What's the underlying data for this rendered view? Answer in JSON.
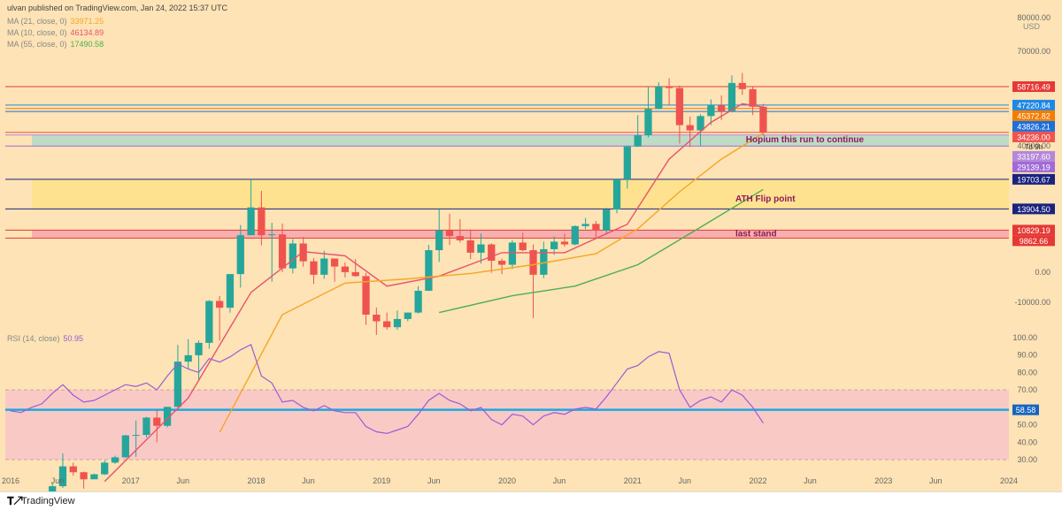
{
  "header": {
    "published": "ulvan published on TradingView.com, Jan 24, 2022 15:37 UTC",
    "ma21_label": "MA (21, close, 0)",
    "ma21_value": "33971.25",
    "ma21_color": "#f5a623",
    "ma10_label": "MA (10, close, 0)",
    "ma10_value": "46134.89",
    "ma10_color": "#e8526b",
    "ma55_label": "MA (55, close, 0)",
    "ma55_value": "17490.58",
    "ma55_color": "#4caf50"
  },
  "footer": {
    "logo_icon": "tradingview-logo-icon",
    "brand": "TradingView"
  },
  "colors": {
    "background": "#fde3b5",
    "bull": "#26a69a",
    "bear": "#ef5350",
    "rsi_line": "#9c5bd6",
    "rsi_band": "#f7c3c9",
    "rsi_level_line": "#1ea7e0"
  },
  "chart_data": [
    {
      "type": "candlestick",
      "title": "",
      "currency_label": "USD",
      "yscale": "log",
      "y_tick_labels": [
        "80000.00",
        "70000.00",
        "40000.00",
        "0.00",
        "-10000.00"
      ],
      "x_tick_labels": [
        "2016",
        "Jun",
        "2017",
        "Jun",
        "2018",
        "Jun",
        "2019",
        "Jun",
        "2020",
        "Jun",
        "2021",
        "Jun",
        "2022",
        "Jun",
        "2023",
        "Jun",
        "2024"
      ],
      "x_tick_dates": [
        "2016-01",
        "2016-06",
        "2017-01",
        "2017-06",
        "2018-01",
        "2018-06",
        "2019-01",
        "2019-06",
        "2020-01",
        "2020-06",
        "2021-01",
        "2021-06",
        "2022-01",
        "2022-06",
        "2023-01",
        "2023-06",
        "2024-01"
      ],
      "candles": [
        {
          "date": "2016-01",
          "o": 430,
          "h": 465,
          "l": 355,
          "c": 370
        },
        {
          "date": "2016-02",
          "o": 370,
          "h": 440,
          "l": 365,
          "c": 435
        },
        {
          "date": "2016-03",
          "o": 435,
          "h": 440,
          "l": 405,
          "c": 415
        },
        {
          "date": "2016-04",
          "o": 415,
          "h": 465,
          "l": 412,
          "c": 450
        },
        {
          "date": "2016-05",
          "o": 450,
          "h": 550,
          "l": 440,
          "c": 530
        },
        {
          "date": "2016-06",
          "o": 530,
          "h": 780,
          "l": 520,
          "c": 670
        },
        {
          "date": "2016-07",
          "o": 670,
          "h": 700,
          "l": 600,
          "c": 625
        },
        {
          "date": "2016-08",
          "o": 625,
          "h": 630,
          "l": 515,
          "c": 575
        },
        {
          "date": "2016-09",
          "o": 575,
          "h": 615,
          "l": 590,
          "c": 610
        },
        {
          "date": "2016-10",
          "o": 610,
          "h": 720,
          "l": 605,
          "c": 700
        },
        {
          "date": "2016-11",
          "o": 700,
          "h": 760,
          "l": 690,
          "c": 745
        },
        {
          "date": "2016-12",
          "o": 745,
          "h": 970,
          "l": 740,
          "c": 965
        },
        {
          "date": "2017-01",
          "o": 965,
          "h": 1150,
          "l": 750,
          "c": 970
        },
        {
          "date": "2017-02",
          "o": 970,
          "h": 1200,
          "l": 940,
          "c": 1190
        },
        {
          "date": "2017-03",
          "o": 1190,
          "h": 1300,
          "l": 890,
          "c": 1080
        },
        {
          "date": "2017-04",
          "o": 1080,
          "h": 1350,
          "l": 1060,
          "c": 1350
        },
        {
          "date": "2017-05",
          "o": 1350,
          "h": 2800,
          "l": 1340,
          "c": 2300
        },
        {
          "date": "2017-06",
          "o": 2300,
          "h": 3000,
          "l": 2100,
          "c": 2480
        },
        {
          "date": "2017-07",
          "o": 2480,
          "h": 2950,
          "l": 1830,
          "c": 2870
        },
        {
          "date": "2017-08",
          "o": 2870,
          "h": 4750,
          "l": 2680,
          "c": 4700
        },
        {
          "date": "2017-09",
          "o": 4700,
          "h": 4980,
          "l": 2950,
          "c": 4340
        },
        {
          "date": "2017-10",
          "o": 4340,
          "h": 6450,
          "l": 4100,
          "c": 6450
        },
        {
          "date": "2017-11",
          "o": 6450,
          "h": 11500,
          "l": 5500,
          "c": 10200
        },
        {
          "date": "2017-12",
          "o": 10200,
          "h": 19700,
          "l": 10700,
          "c": 14150
        },
        {
          "date": "2018-01",
          "o": 14150,
          "h": 17200,
          "l": 9050,
          "c": 10200
        },
        {
          "date": "2018-02",
          "o": 10200,
          "h": 11800,
          "l": 5900,
          "c": 10300
        },
        {
          "date": "2018-03",
          "o": 10300,
          "h": 11700,
          "l": 6600,
          "c": 6900
        },
        {
          "date": "2018-04",
          "o": 6900,
          "h": 9750,
          "l": 6500,
          "c": 9250
        },
        {
          "date": "2018-05",
          "o": 9250,
          "h": 10000,
          "l": 7050,
          "c": 7500
        },
        {
          "date": "2018-06",
          "o": 7500,
          "h": 7800,
          "l": 5750,
          "c": 6400
        },
        {
          "date": "2018-07",
          "o": 6400,
          "h": 8500,
          "l": 6100,
          "c": 7750
        },
        {
          "date": "2018-08",
          "o": 7750,
          "h": 7750,
          "l": 5900,
          "c": 7050
        },
        {
          "date": "2018-09",
          "o": 7050,
          "h": 7400,
          "l": 6200,
          "c": 6600
        },
        {
          "date": "2018-10",
          "o": 6600,
          "h": 7700,
          "l": 6250,
          "c": 6300
        },
        {
          "date": "2018-11",
          "o": 6300,
          "h": 6550,
          "l": 3550,
          "c": 4000
        },
        {
          "date": "2018-12",
          "o": 4000,
          "h": 4350,
          "l": 3150,
          "c": 3700
        },
        {
          "date": "2019-01",
          "o": 3700,
          "h": 4100,
          "l": 3350,
          "c": 3450
        },
        {
          "date": "2019-02",
          "o": 3450,
          "h": 4200,
          "l": 3350,
          "c": 3800
        },
        {
          "date": "2019-03",
          "o": 3800,
          "h": 4100,
          "l": 3700,
          "c": 4100
        },
        {
          "date": "2019-04",
          "o": 4100,
          "h": 5600,
          "l": 4050,
          "c": 5300
        },
        {
          "date": "2019-05",
          "o": 5300,
          "h": 9100,
          "l": 5300,
          "c": 8550
        },
        {
          "date": "2019-06",
          "o": 8550,
          "h": 13900,
          "l": 7450,
          "c": 10800
        },
        {
          "date": "2019-07",
          "o": 10800,
          "h": 13150,
          "l": 9100,
          "c": 10100
        },
        {
          "date": "2019-08",
          "o": 10100,
          "h": 12300,
          "l": 9350,
          "c": 9600
        },
        {
          "date": "2019-09",
          "o": 9600,
          "h": 10900,
          "l": 7700,
          "c": 8300
        },
        {
          "date": "2019-10",
          "o": 8300,
          "h": 10400,
          "l": 7300,
          "c": 9150
        },
        {
          "date": "2019-11",
          "o": 9150,
          "h": 9270,
          "l": 6550,
          "c": 7550
        },
        {
          "date": "2019-12",
          "o": 7550,
          "h": 7750,
          "l": 6450,
          "c": 7200
        },
        {
          "date": "2020-01",
          "o": 7200,
          "h": 9600,
          "l": 6850,
          "c": 9350
        },
        {
          "date": "2020-02",
          "o": 9350,
          "h": 10500,
          "l": 8450,
          "c": 8550
        },
        {
          "date": "2020-03",
          "o": 8550,
          "h": 9150,
          "l": 3850,
          "c": 6400
        },
        {
          "date": "2020-04",
          "o": 6400,
          "h": 9450,
          "l": 6150,
          "c": 8650
        },
        {
          "date": "2020-05",
          "o": 8650,
          "h": 10050,
          "l": 8100,
          "c": 9450
        },
        {
          "date": "2020-06",
          "o": 9450,
          "h": 10400,
          "l": 8900,
          "c": 9150
        },
        {
          "date": "2020-07",
          "o": 9150,
          "h": 11450,
          "l": 9050,
          "c": 11350
        },
        {
          "date": "2020-08",
          "o": 11350,
          "h": 12500,
          "l": 10950,
          "c": 11650
        },
        {
          "date": "2020-09",
          "o": 11650,
          "h": 12050,
          "l": 9850,
          "c": 10800
        },
        {
          "date": "2020-10",
          "o": 10800,
          "h": 14100,
          "l": 10400,
          "c": 13800
        },
        {
          "date": "2020-11",
          "o": 13800,
          "h": 19900,
          "l": 13200,
          "c": 19700
        },
        {
          "date": "2020-12",
          "o": 19700,
          "h": 29300,
          "l": 17650,
          "c": 29000
        },
        {
          "date": "2021-01",
          "o": 29000,
          "h": 41950,
          "l": 28800,
          "c": 33100
        },
        {
          "date": "2021-02",
          "o": 33100,
          "h": 58350,
          "l": 32300,
          "c": 45150
        },
        {
          "date": "2021-03",
          "o": 45150,
          "h": 61800,
          "l": 45000,
          "c": 58800
        },
        {
          "date": "2021-04",
          "o": 58800,
          "h": 64850,
          "l": 47050,
          "c": 57750
        },
        {
          "date": "2021-05",
          "o": 57750,
          "h": 59500,
          "l": 30000,
          "c": 37300
        },
        {
          "date": "2021-06",
          "o": 37300,
          "h": 41300,
          "l": 28800,
          "c": 35050
        },
        {
          "date": "2021-07",
          "o": 35050,
          "h": 42400,
          "l": 29300,
          "c": 41500
        },
        {
          "date": "2021-08",
          "o": 41500,
          "h": 50500,
          "l": 37350,
          "c": 47100
        },
        {
          "date": "2021-09",
          "o": 47100,
          "h": 52900,
          "l": 39600,
          "c": 43800
        },
        {
          "date": "2021-10",
          "o": 43800,
          "h": 67000,
          "l": 43300,
          "c": 61300
        },
        {
          "date": "2021-11",
          "o": 61300,
          "h": 69000,
          "l": 53300,
          "c": 57000
        },
        {
          "date": "2021-12",
          "o": 57000,
          "h": 59100,
          "l": 42000,
          "c": 46300
        },
        {
          "date": "2022-01",
          "o": 46300,
          "h": 47900,
          "l": 33200,
          "c": 34236
        }
      ],
      "ma_lines": [
        {
          "name": "MA (10, close, 0)",
          "color": "#e8526b",
          "points": [
            {
              "date": "2016-10",
              "v": 560
            },
            {
              "date": "2017-06",
              "v": 1500
            },
            {
              "date": "2017-12",
              "v": 5200
            },
            {
              "date": "2018-05",
              "v": 8400
            },
            {
              "date": "2018-09",
              "v": 8000
            },
            {
              "date": "2019-01",
              "v": 5600
            },
            {
              "date": "2019-06",
              "v": 6300
            },
            {
              "date": "2019-12",
              "v": 8300
            },
            {
              "date": "2020-06",
              "v": 8300
            },
            {
              "date": "2020-12",
              "v": 11600
            },
            {
              "date": "2021-04",
              "v": 25000
            },
            {
              "date": "2021-08",
              "v": 38500
            },
            {
              "date": "2021-11",
              "v": 48000
            },
            {
              "date": "2022-01",
              "v": 46134.89
            }
          ]
        },
        {
          "name": "MA (21, close, 0)",
          "color": "#f5a623",
          "points": [
            {
              "date": "2017-09",
              "v": 1000
            },
            {
              "date": "2018-03",
              "v": 4000
            },
            {
              "date": "2018-09",
              "v": 5800
            },
            {
              "date": "2019-03",
              "v": 6100
            },
            {
              "date": "2019-09",
              "v": 6500
            },
            {
              "date": "2020-03",
              "v": 7200
            },
            {
              "date": "2020-09",
              "v": 8200
            },
            {
              "date": "2021-01",
              "v": 11000
            },
            {
              "date": "2021-05",
              "v": 17000
            },
            {
              "date": "2021-09",
              "v": 25000
            },
            {
              "date": "2022-01",
              "v": 33971.25
            }
          ]
        },
        {
          "name": "MA (55, close, 0)",
          "color": "#4caf50",
          "points": [
            {
              "date": "2019-06",
              "v": 4100
            },
            {
              "date": "2020-01",
              "v": 5000
            },
            {
              "date": "2020-07",
              "v": 5600
            },
            {
              "date": "2021-01",
              "v": 7200
            },
            {
              "date": "2021-07",
              "v": 11200
            },
            {
              "date": "2022-01",
              "v": 17490.58
            }
          ]
        }
      ],
      "horizontal_levels": [
        {
          "value": 58716.49,
          "label": "58716.49",
          "color": "#e53935"
        },
        {
          "value": 47220.84,
          "label": "47220.84",
          "color": "#1e88e5"
        },
        {
          "value": 45372.82,
          "label": "45372.82",
          "color": "#f57c00"
        },
        {
          "value": 43826.21,
          "label": "43826.21",
          "color": "#1e6fd9"
        },
        {
          "value": 34236.0,
          "label": "34236.00",
          "sublabel": "7d 9h",
          "color": "#ef5350"
        },
        {
          "value": 33197.6,
          "label": "33197.60",
          "color": "#b388d9"
        },
        {
          "value": 29139.19,
          "label": "29139.19",
          "color": "#a06ad8"
        },
        {
          "value": 19703.67,
          "label": "19703.67",
          "color": "#1a237e"
        },
        {
          "value": 13904.5,
          "label": "13904.50",
          "color": "#1a237e"
        },
        {
          "value": 10829.19,
          "label": "10829.19",
          "color": "#e53935"
        },
        {
          "value": 9862.66,
          "label": "9862.66",
          "color": "#e53935"
        }
      ],
      "zones": [
        {
          "name": "support-zone",
          "from": 29139.19,
          "to": 33197.6,
          "color": "#b3d9c8"
        },
        {
          "name": "ath-flip-zone",
          "from": 13904.5,
          "to": 19703.67,
          "color": "#ffe28a"
        },
        {
          "name": "last-stand-zone",
          "from": 9862.66,
          "to": 10829.19,
          "color": "#f4a7b0"
        }
      ],
      "annotations": [
        {
          "text": "Hopium this run to continue",
          "date": "2021-11",
          "value": 30500
        },
        {
          "text": "ATH Flip point",
          "date": "2021-10",
          "value": 15200
        },
        {
          "text": "last stand",
          "date": "2021-10",
          "value": 10050
        }
      ]
    },
    {
      "type": "line",
      "title": "RSI (14, close)",
      "current_value": "50.95",
      "right_badge": "58.58",
      "ylim": [
        30,
        100
      ],
      "y_tick_labels": [
        "100.00",
        "90.00",
        "80.00",
        "70.00",
        "60.00",
        "50.00",
        "40.00",
        "30.00"
      ],
      "band": [
        30,
        70
      ],
      "level": 58.58,
      "series": [
        {
          "x": [
            "2016-01",
            "2016-02",
            "2016-03",
            "2016-04",
            "2016-05",
            "2016-06",
            "2016-07",
            "2016-08",
            "2016-09",
            "2016-10",
            "2016-11",
            "2016-12",
            "2017-01",
            "2017-02",
            "2017-03",
            "2017-04",
            "2017-05",
            "2017-06",
            "2017-07",
            "2017-08",
            "2017-09",
            "2017-10",
            "2017-11",
            "2017-12",
            "2018-01",
            "2018-02",
            "2018-03",
            "2018-04",
            "2018-05",
            "2018-06",
            "2018-07",
            "2018-08",
            "2018-09",
            "2018-10",
            "2018-11",
            "2018-12",
            "2019-01",
            "2019-02",
            "2019-03",
            "2019-04",
            "2019-05",
            "2019-06",
            "2019-07",
            "2019-08",
            "2019-09",
            "2019-10",
            "2019-11",
            "2019-12",
            "2020-01",
            "2020-02",
            "2020-03",
            "2020-04",
            "2020-05",
            "2020-06",
            "2020-07",
            "2020-08",
            "2020-09",
            "2020-10",
            "2020-11",
            "2020-12",
            "2021-01",
            "2021-02",
            "2021-03",
            "2021-04",
            "2021-05",
            "2021-06",
            "2021-07",
            "2021-08",
            "2021-09",
            "2021-10",
            "2021-11",
            "2021-12",
            "2022-01"
          ],
          "y": [
            58,
            57,
            60,
            62,
            68,
            73,
            67,
            63,
            64,
            67,
            70,
            73,
            72,
            74,
            70,
            78,
            85,
            82,
            80,
            88,
            86,
            89,
            93,
            96,
            78,
            74,
            63,
            64,
            60,
            58,
            61,
            58,
            57,
            57,
            49,
            46,
            45,
            47,
            49,
            56,
            64,
            68,
            64,
            62,
            58,
            60,
            53,
            50,
            56,
            55,
            50,
            55,
            57,
            56,
            59,
            60,
            59,
            66,
            74,
            82,
            84,
            89,
            92,
            91,
            70,
            60,
            64,
            66,
            63,
            70,
            67,
            60,
            50.95
          ]
        }
      ]
    }
  ]
}
